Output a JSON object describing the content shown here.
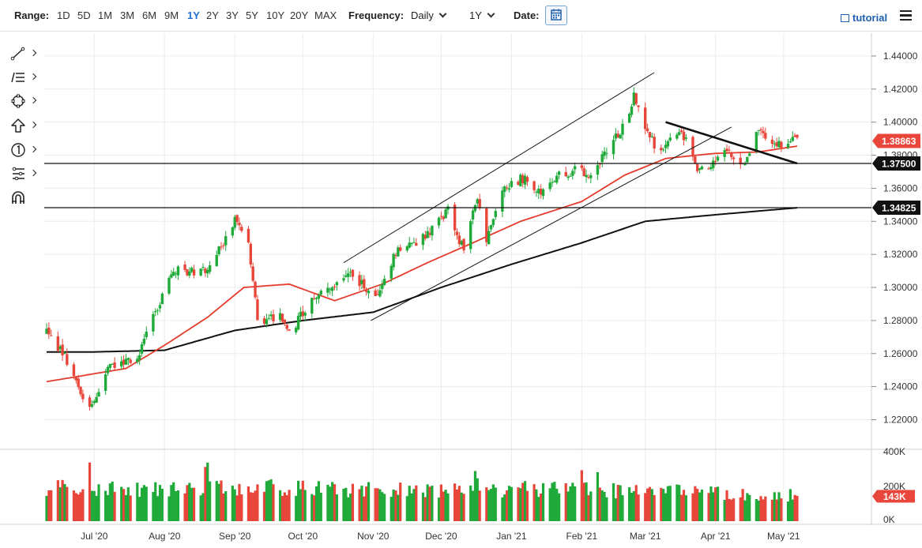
{
  "toolbar": {
    "range_label": "Range:",
    "ranges": [
      "1D",
      "5D",
      "1M",
      "3M",
      "6M",
      "9M",
      "1Y",
      "2Y",
      "3Y",
      "5Y",
      "10Y",
      "20Y",
      "MAX"
    ],
    "active_range": "1Y",
    "frequency_label": "Frequency:",
    "frequency_value": "Daily",
    "period_value": "1Y",
    "date_label": "Date:",
    "tutorial_label": "tutorial"
  },
  "tools": [
    "line-tool-icon",
    "fib-tool-icon",
    "shape-tool-icon",
    "arrow-tool-icon",
    "annotation-tool-icon",
    "pitchfork-tool-icon",
    "magnet-icon"
  ],
  "colors": {
    "up": "#1faa3a",
    "down": "#e8463a",
    "ma_fast": "#e53b2c",
    "ma_slow": "#111111",
    "current_label": "#e8463a",
    "level_label": "#111111"
  },
  "chart_data": {
    "type": "candlestick",
    "frequency": "Daily",
    "x_labels": [
      "Jul '20",
      "Aug '20",
      "Sep '20",
      "Oct '20",
      "Nov '20",
      "Dec '20",
      "Jan '21",
      "Feb '21",
      "Mar '21",
      "Apr '21",
      "May '21"
    ],
    "x_range": [
      "2020-06-10",
      "2021-05-07"
    ],
    "price_axis": {
      "ticks": [
        "1.22000",
        "1.24000",
        "1.26000",
        "1.28000",
        "1.30000",
        "1.32000",
        "1.34000",
        "1.36000",
        "1.38000",
        "1.40000",
        "1.42000",
        "1.44000"
      ],
      "ylim": [
        1.204,
        1.45
      ]
    },
    "volume_axis": {
      "ticks": [
        "0K",
        "200K",
        "400K"
      ],
      "ylim": [
        0,
        400
      ]
    },
    "price_path": [
      [
        "2020-06-10",
        1.273
      ],
      [
        "2020-06-18",
        1.258
      ],
      [
        "2020-06-26",
        1.235
      ],
      [
        "2020-06-30",
        1.228
      ],
      [
        "2020-07-08",
        1.252
      ],
      [
        "2020-07-20",
        1.258
      ],
      [
        "2020-07-28",
        1.285
      ],
      [
        "2020-08-05",
        1.31
      ],
      [
        "2020-08-14",
        1.31
      ],
      [
        "2020-08-21",
        1.312
      ],
      [
        "2020-08-28",
        1.33
      ],
      [
        "2020-09-01",
        1.342
      ],
      [
        "2020-09-07",
        1.325
      ],
      [
        "2020-09-11",
        1.28
      ],
      [
        "2020-09-21",
        1.283
      ],
      [
        "2020-09-25",
        1.272
      ],
      [
        "2020-10-05",
        1.293
      ],
      [
        "2020-10-14",
        1.3
      ],
      [
        "2020-10-21",
        1.31
      ],
      [
        "2020-10-27",
        1.302
      ],
      [
        "2020-11-02",
        1.292
      ],
      [
        "2020-11-11",
        1.322
      ],
      [
        "2020-11-19",
        1.326
      ],
      [
        "2020-11-27",
        1.335
      ],
      [
        "2020-12-04",
        1.347
      ],
      [
        "2020-12-11",
        1.322
      ],
      [
        "2020-12-17",
        1.356
      ],
      [
        "2020-12-21",
        1.33
      ],
      [
        "2020-12-28",
        1.36
      ],
      [
        "2021-01-06",
        1.366
      ],
      [
        "2021-01-13",
        1.357
      ],
      [
        "2021-01-20",
        1.367
      ],
      [
        "2021-01-29",
        1.371
      ],
      [
        "2021-02-05",
        1.368
      ],
      [
        "2021-02-12",
        1.382
      ],
      [
        "2021-02-19",
        1.397
      ],
      [
        "2021-02-24",
        1.415
      ],
      [
        "2021-03-01",
        1.396
      ],
      [
        "2021-03-08",
        1.38
      ],
      [
        "2021-03-15",
        1.395
      ],
      [
        "2021-03-19",
        1.389
      ],
      [
        "2021-03-24",
        1.368
      ],
      [
        "2021-03-31",
        1.377
      ],
      [
        "2021-04-06",
        1.384
      ],
      [
        "2021-04-12",
        1.372
      ],
      [
        "2021-04-16",
        1.38
      ],
      [
        "2021-04-20",
        1.398
      ],
      [
        "2021-04-26",
        1.385
      ],
      [
        "2021-05-03",
        1.388
      ],
      [
        "2021-05-07",
        1.3886
      ]
    ],
    "ma_fast_path": [
      [
        "2020-06-10",
        1.243
      ],
      [
        "2020-07-15",
        1.251
      ],
      [
        "2020-08-01",
        1.265
      ],
      [
        "2020-08-20",
        1.282
      ],
      [
        "2020-09-05",
        1.3
      ],
      [
        "2020-09-25",
        1.302
      ],
      [
        "2020-10-15",
        1.292
      ],
      [
        "2020-11-05",
        1.302
      ],
      [
        "2020-11-25",
        1.315
      ],
      [
        "2020-12-15",
        1.327
      ],
      [
        "2021-01-05",
        1.34
      ],
      [
        "2021-02-01",
        1.352
      ],
      [
        "2021-02-20",
        1.368
      ],
      [
        "2021-03-10",
        1.378
      ],
      [
        "2021-03-31",
        1.381
      ],
      [
        "2021-04-20",
        1.382
      ],
      [
        "2021-05-07",
        1.3855
      ]
    ],
    "ma_slow_path": [
      [
        "2020-06-10",
        1.261
      ],
      [
        "2020-07-01",
        1.261
      ],
      [
        "2020-08-01",
        1.262
      ],
      [
        "2020-09-01",
        1.274
      ],
      [
        "2020-10-01",
        1.28
      ],
      [
        "2020-11-01",
        1.285
      ],
      [
        "2020-12-01",
        1.3
      ],
      [
        "2021-01-01",
        1.314
      ],
      [
        "2021-02-01",
        1.327
      ],
      [
        "2021-03-01",
        1.34
      ],
      [
        "2021-04-01",
        1.344
      ],
      [
        "2021-05-07",
        1.3482
      ]
    ],
    "trendlines": [
      {
        "name": "channel-upper",
        "from": [
          "2020-10-19",
          1.315
        ],
        "to": [
          "2021-03-05",
          1.43
        ]
      },
      {
        "name": "channel-lower",
        "from": [
          "2020-10-31",
          1.28
        ],
        "to": [
          "2021-04-08",
          1.397
        ]
      },
      {
        "name": "descending-resistance",
        "from": [
          "2021-03-10",
          1.4
        ],
        "to": [
          "2021-05-07",
          1.375
        ]
      }
    ],
    "horizontal_levels": [
      {
        "value": 1.375,
        "label": "1.37500"
      },
      {
        "value": 1.34825,
        "label": "1.34825"
      }
    ],
    "current_price": {
      "value": 1.38863,
      "label": "1.38863"
    },
    "current_volume": {
      "value": 143,
      "label": "143K"
    },
    "volume_levels": [
      [
        "2020-06-10",
        200
      ],
      [
        "2020-07-01",
        200
      ],
      [
        "2020-07-15",
        190
      ],
      [
        "2020-08-15",
        195
      ],
      [
        "2020-09-15",
        200
      ],
      [
        "2020-10-15",
        190
      ],
      [
        "2020-11-15",
        185
      ],
      [
        "2020-12-15",
        190
      ],
      [
        "2021-01-15",
        190
      ],
      [
        "2021-02-15",
        180
      ],
      [
        "2021-03-15",
        175
      ],
      [
        "2021-04-15",
        160
      ],
      [
        "2021-05-07",
        155
      ]
    ]
  }
}
